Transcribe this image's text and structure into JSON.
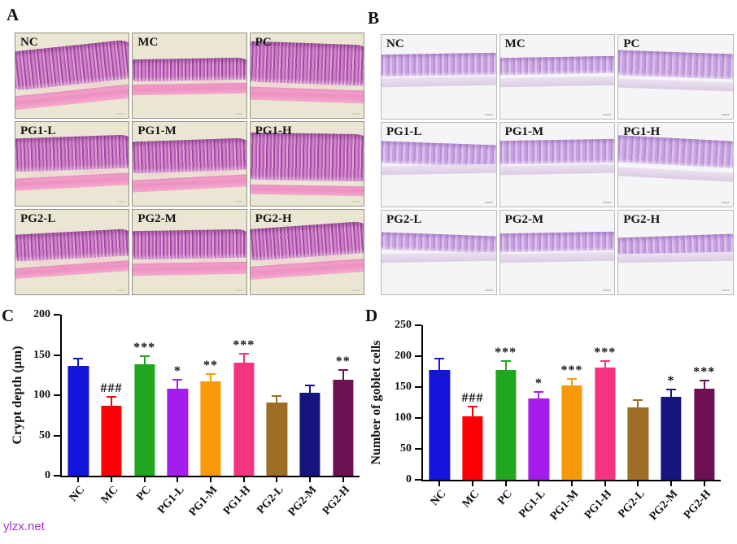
{
  "watermark": "ylzx.net",
  "panels": {
    "A": {
      "letter": "A",
      "stain_colors": {
        "background": "#ebe5d3",
        "crypt": "#b55ab4",
        "muscle": "#ee8ec2"
      },
      "images": [
        {
          "label": "NC"
        },
        {
          "label": "MC"
        },
        {
          "label": "PC"
        },
        {
          "label": "PG1-L"
        },
        {
          "label": "PG1-M"
        },
        {
          "label": "PG1-H"
        },
        {
          "label": "PG2-L"
        },
        {
          "label": "PG2-M"
        },
        {
          "label": "PG2-H"
        }
      ]
    },
    "B": {
      "letter": "B",
      "stain_colors": {
        "background": "#f5f4f6",
        "mucosa": "#c7a3e0"
      },
      "images": [
        {
          "label": "NC"
        },
        {
          "label": "MC"
        },
        {
          "label": "PC"
        },
        {
          "label": "PG1-L"
        },
        {
          "label": "PG1-M"
        },
        {
          "label": "PG1-H"
        },
        {
          "label": "PG2-L"
        },
        {
          "label": "PG2-M"
        },
        {
          "label": "PG2-H"
        }
      ]
    }
  },
  "chart_data": [
    {
      "panel": "C",
      "type": "bar",
      "title": "",
      "xlabel": "",
      "ylabel": "Crypt depth (μm)",
      "ylim": [
        0,
        200
      ],
      "yticks": [
        0,
        50,
        100,
        150,
        200
      ],
      "grid": false,
      "legend": "none",
      "categories": [
        "NC",
        "MC",
        "PC",
        "PG1-L",
        "PG1-M",
        "PG1-H",
        "PG2-L",
        "PG2-M",
        "PG2-H"
      ],
      "values": [
        136,
        87,
        138,
        108,
        117,
        140,
        91,
        103,
        119
      ],
      "errors": [
        11,
        12,
        12,
        12,
        10,
        13,
        9,
        10,
        13
      ],
      "annotations": [
        "",
        "###",
        "***",
        "*",
        "**",
        "***",
        "",
        "",
        "**"
      ],
      "colors": [
        "#1414dd",
        "#fb0007",
        "#1fa81f",
        "#a51ded",
        "#f8990a",
        "#f5337f",
        "#9e6e27",
        "#16147e",
        "#6e1152"
      ]
    },
    {
      "panel": "D",
      "type": "bar",
      "title": "",
      "xlabel": "",
      "ylabel": "Number of goblet cells",
      "ylim": [
        0,
        250
      ],
      "yticks": [
        0,
        50,
        100,
        150,
        200,
        250
      ],
      "grid": false,
      "legend": "none",
      "categories": [
        "NC",
        "MC",
        "PC",
        "PG1-L",
        "PG1-M",
        "PG1-H",
        "PG2-L",
        "PG2-M",
        "PG2-H"
      ],
      "values": [
        178,
        103,
        177,
        132,
        152,
        182,
        117,
        134,
        148
      ],
      "errors": [
        20,
        17,
        17,
        11,
        12,
        12,
        13,
        14,
        14
      ],
      "annotations": [
        "",
        "###",
        "***",
        "*",
        "***",
        "***",
        "",
        "*",
        "***"
      ],
      "colors": [
        "#1414dd",
        "#fb0007",
        "#1fa81f",
        "#a51ded",
        "#f8990a",
        "#f5337f",
        "#9e6e27",
        "#16147e",
        "#6e1152"
      ]
    }
  ]
}
